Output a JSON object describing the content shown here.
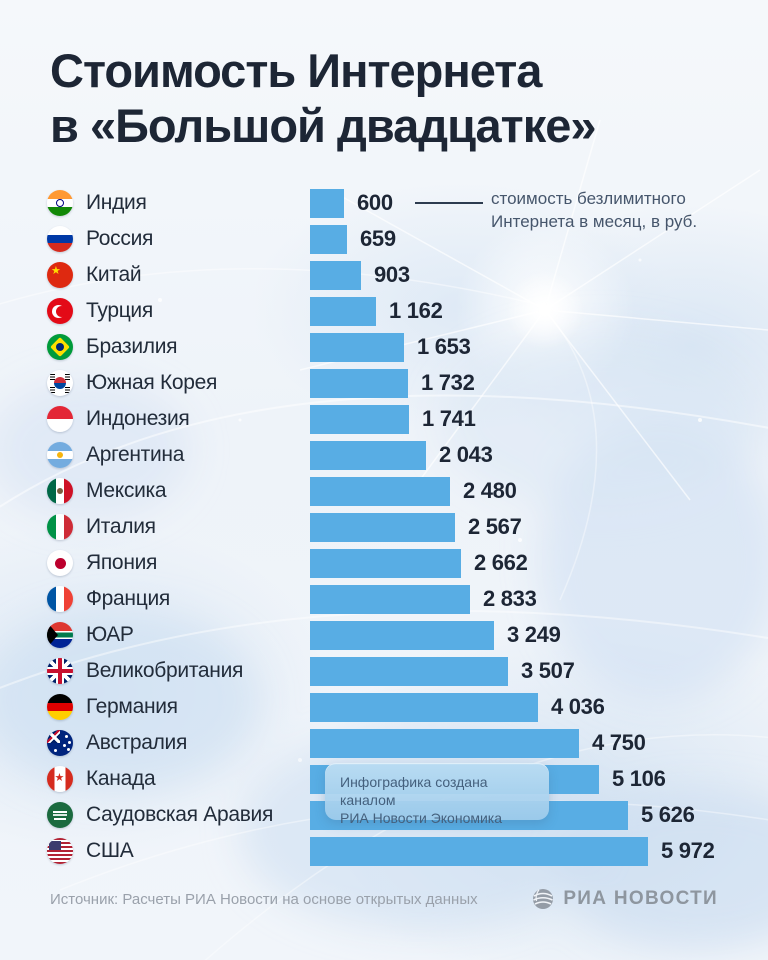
{
  "title": {
    "line1": "Стоимость Интернета",
    "line2": "в «Большой двадцатке»"
  },
  "annotation": {
    "text": "стоимость безлимитного Интернета в месяц, в руб."
  },
  "tooltip": {
    "line1": "Инфографика создана каналом",
    "line2": "РИА Новости Экономика"
  },
  "footer": {
    "source": "Источник: Расчеты РИА Новости на основе открытых данных",
    "logo_text": "РИА НОВОСТИ"
  },
  "colors": {
    "bar": "#58ade4",
    "title_text": "#1d2635",
    "annotation_text": "#46566c",
    "tooltip_bg": "#a9cfe9",
    "tooltip_text": "#44607d",
    "footer_text": "#9aa1ab",
    "background": "#eef3f9"
  },
  "icons": {
    "logo": "ria-novosti-globe-icon",
    "flags": [
      "india",
      "russia",
      "china",
      "turkey",
      "brazil",
      "south-korea",
      "indonesia",
      "argentina",
      "mexico",
      "italy",
      "japan",
      "france",
      "south-africa",
      "uk",
      "germany",
      "australia",
      "canada",
      "saudi-arabia",
      "usa"
    ]
  },
  "chart_data": {
    "type": "bar",
    "orientation": "horizontal",
    "title": "Стоимость Интернета в «Большой двадцатке»",
    "value_note": "стоимость безлимитного Интернета в месяц, в руб.",
    "unit": "руб. в месяц",
    "max_value": 5972,
    "xlim": [
      0,
      5972
    ],
    "grid": false,
    "legend": false,
    "categories": [
      "Индия",
      "Россия",
      "Китай",
      "Турция",
      "Бразилия",
      "Южная Корея",
      "Индонезия",
      "Аргентина",
      "Мексика",
      "Италия",
      "Япония",
      "Франция",
      "ЮАР",
      "Великобритания",
      "Германия",
      "Австралия",
      "Канада",
      "Саудовская Аравия",
      "США"
    ],
    "values": [
      600,
      659,
      903,
      1162,
      1653,
      1732,
      1741,
      2043,
      2480,
      2567,
      2662,
      2833,
      3249,
      3507,
      4036,
      4750,
      5106,
      5626,
      5972
    ],
    "rows": [
      {
        "country": "Индия",
        "flag": "india",
        "value": 600,
        "value_label": "600"
      },
      {
        "country": "Россия",
        "flag": "russia",
        "value": 659,
        "value_label": "659"
      },
      {
        "country": "Китай",
        "flag": "china",
        "value": 903,
        "value_label": "903"
      },
      {
        "country": "Турция",
        "flag": "turkey",
        "value": 1162,
        "value_label": "1 162"
      },
      {
        "country": "Бразилия",
        "flag": "brazil",
        "value": 1653,
        "value_label": "1 653"
      },
      {
        "country": "Южная Корея",
        "flag": "south-korea",
        "value": 1732,
        "value_label": "1 732"
      },
      {
        "country": "Индонезия",
        "flag": "indonesia",
        "value": 1741,
        "value_label": "1 741"
      },
      {
        "country": "Аргентина",
        "flag": "argentina",
        "value": 2043,
        "value_label": "2 043"
      },
      {
        "country": "Мексика",
        "flag": "mexico",
        "value": 2480,
        "value_label": "2 480"
      },
      {
        "country": "Италия",
        "flag": "italy",
        "value": 2567,
        "value_label": "2 567"
      },
      {
        "country": "Япония",
        "flag": "japan",
        "value": 2662,
        "value_label": "2 662"
      },
      {
        "country": "Франция",
        "flag": "france",
        "value": 2833,
        "value_label": "2 833"
      },
      {
        "country": "ЮАР",
        "flag": "south-africa",
        "value": 3249,
        "value_label": "3 249"
      },
      {
        "country": "Великобритания",
        "flag": "uk",
        "value": 3507,
        "value_label": "3 507"
      },
      {
        "country": "Германия",
        "flag": "germany",
        "value": 4036,
        "value_label": "4 036"
      },
      {
        "country": "Австралия",
        "flag": "australia",
        "value": 4750,
        "value_label": "4 750"
      },
      {
        "country": "Канада",
        "flag": "canada",
        "value": 5106,
        "value_label": "5 106"
      },
      {
        "country": "Саудовская Аравия",
        "flag": "saudi-arabia",
        "value": 5626,
        "value_label": "5 626"
      },
      {
        "country": "США",
        "flag": "usa",
        "value": 5972,
        "value_label": "5 972"
      }
    ]
  }
}
